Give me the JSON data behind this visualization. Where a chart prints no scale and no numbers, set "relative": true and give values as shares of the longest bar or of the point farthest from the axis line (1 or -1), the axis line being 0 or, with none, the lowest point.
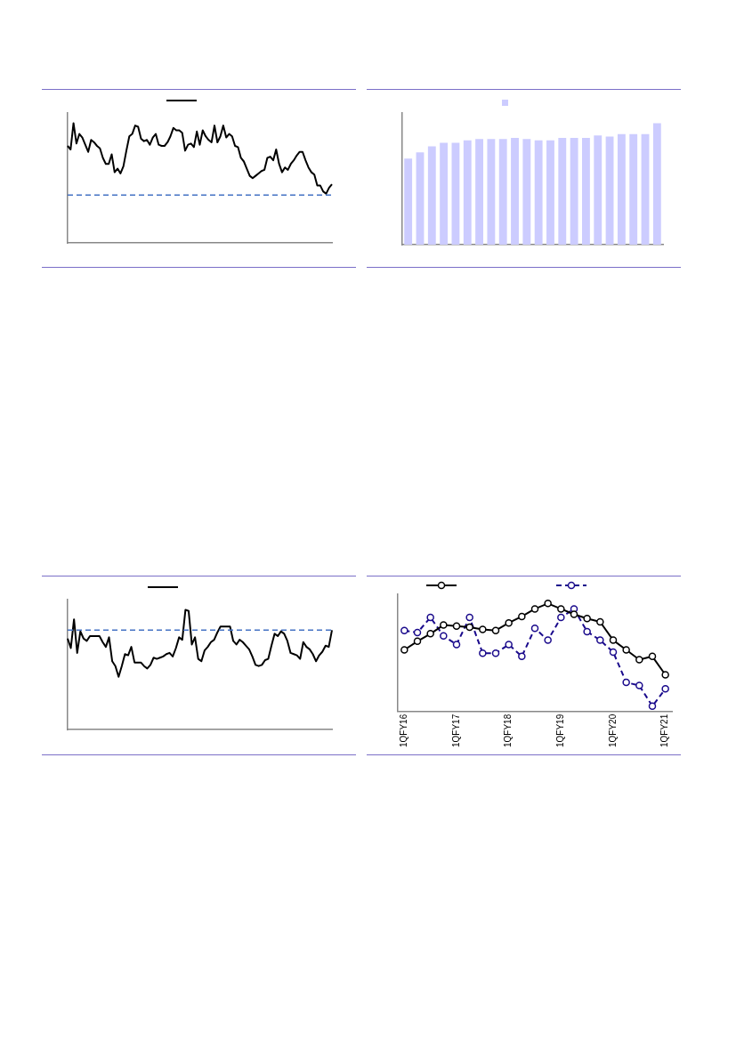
{
  "chart_data": [
    {
      "type": "line",
      "relative": true,
      "marker": "none",
      "categories": [
        null,
        null,
        null,
        null,
        null,
        null,
        null,
        null,
        null,
        null,
        null,
        null,
        null,
        null,
        null,
        null,
        null,
        null,
        null,
        null,
        null,
        null,
        null,
        null,
        null,
        null,
        null,
        null,
        null,
        null,
        null,
        null,
        null,
        null,
        null,
        null,
        null,
        null,
        null,
        null,
        null,
        null,
        null,
        null,
        null,
        null,
        null,
        null,
        null,
        null,
        null,
        null,
        null,
        null,
        null,
        null,
        null,
        null,
        null,
        null,
        null,
        null,
        null,
        null,
        null,
        null,
        null,
        null,
        null,
        null,
        null,
        null,
        null,
        null,
        null,
        null,
        null,
        null,
        null,
        null,
        null,
        null,
        null,
        null,
        null,
        null,
        null,
        null,
        null,
        null,
        null
      ],
      "series": [
        {
          "color": "#000000",
          "line_style": "solid",
          "values": [
            0.81,
            0.78,
            1.0,
            0.83,
            0.91,
            0.88,
            0.82,
            0.76,
            0.86,
            0.84,
            0.81,
            0.79,
            0.71,
            0.66,
            0.66,
            0.74,
            0.59,
            0.62,
            0.58,
            0.64,
            0.77,
            0.89,
            0.91,
            0.98,
            0.97,
            0.87,
            0.85,
            0.86,
            0.82,
            0.88,
            0.91,
            0.82,
            0.81,
            0.81,
            0.84,
            0.89,
            0.96,
            0.94,
            0.94,
            0.92,
            0.77,
            0.82,
            0.83,
            0.8,
            0.93,
            0.82,
            0.94,
            0.89,
            0.86,
            0.84,
            0.98,
            0.84,
            0.89,
            0.98,
            0.88,
            0.91,
            0.89,
            0.81,
            0.8,
            0.71,
            0.68,
            0.62,
            0.56,
            0.54,
            0.56,
            0.58,
            0.6,
            0.61,
            0.71,
            0.72,
            0.69,
            0.78,
            0.66,
            0.59,
            0.63,
            0.61,
            0.66,
            0.69,
            0.73,
            0.76,
            0.76,
            0.69,
            0.63,
            0.59,
            0.57,
            0.48,
            0.48,
            0.43,
            0.41,
            0.46,
            0.49
          ]
        }
      ],
      "ref_lines": [
        {
          "axis": "y",
          "value": 0.4,
          "color": "#4472c4",
          "line_style": "dashed"
        }
      ]
    },
    {
      "type": "bar",
      "relative": true,
      "categories": [
        null,
        null,
        null,
        null,
        null,
        null,
        null,
        null,
        null,
        null,
        null,
        null,
        null,
        null,
        null,
        null,
        null,
        null,
        null,
        null,
        null,
        null
      ],
      "series": [
        {
          "color": "#ccccff",
          "values": [
            0.71,
            0.76,
            0.81,
            0.84,
            0.84,
            0.86,
            0.87,
            0.87,
            0.87,
            0.88,
            0.87,
            0.86,
            0.86,
            0.88,
            0.88,
            0.88,
            0.9,
            0.89,
            0.91,
            0.91,
            0.91,
            1.0
          ]
        }
      ]
    },
    {
      "type": "line",
      "relative": true,
      "marker": "none",
      "categories": [
        null,
        null,
        null,
        null,
        null,
        null,
        null,
        null,
        null,
        null,
        null,
        null,
        null,
        null,
        null,
        null,
        null,
        null,
        null,
        null,
        null,
        null,
        null,
        null,
        null,
        null,
        null,
        null,
        null,
        null,
        null,
        null,
        null,
        null,
        null,
        null,
        null,
        null,
        null,
        null,
        null,
        null,
        null,
        null,
        null,
        null,
        null,
        null,
        null,
        null,
        null,
        null,
        null,
        null,
        null,
        null,
        null,
        null,
        null,
        null,
        null,
        null,
        null,
        null,
        null,
        null,
        null,
        null,
        null,
        null,
        null,
        null,
        null,
        null,
        null,
        null,
        null,
        null,
        null,
        null,
        null,
        null,
        null,
        null
      ],
      "series": [
        {
          "color": "#000000",
          "line_style": "solid",
          "values": [
            0.76,
            0.68,
            0.92,
            0.64,
            0.82,
            0.76,
            0.74,
            0.78,
            0.78,
            0.78,
            0.78,
            0.73,
            0.69,
            0.77,
            0.57,
            0.53,
            0.44,
            0.53,
            0.63,
            0.62,
            0.69,
            0.56,
            0.56,
            0.56,
            0.53,
            0.51,
            0.54,
            0.6,
            0.59,
            0.6,
            0.61,
            0.63,
            0.64,
            0.61,
            0.68,
            0.77,
            0.75,
            1.0,
            0.99,
            0.71,
            0.77,
            0.59,
            0.57,
            0.66,
            0.69,
            0.73,
            0.75,
            0.81,
            0.86,
            0.86,
            0.86,
            0.86,
            0.74,
            0.71,
            0.75,
            0.73,
            0.7,
            0.67,
            0.61,
            0.54,
            0.53,
            0.54,
            0.58,
            0.59,
            0.7,
            0.8,
            0.78,
            0.82,
            0.8,
            0.74,
            0.64,
            0.63,
            0.62,
            0.59,
            0.73,
            0.69,
            0.67,
            0.63,
            0.57,
            0.62,
            0.65,
            0.7,
            0.69,
            0.83
          ]
        }
      ],
      "ref_lines": [
        {
          "axis": "y",
          "value": 0.83,
          "color": "#4472c4",
          "line_style": "dashed"
        }
      ]
    },
    {
      "type": "line",
      "relative": true,
      "marker": "circle",
      "categories": [
        "1QFY16",
        null,
        null,
        null,
        "1QFY17",
        null,
        null,
        null,
        "1QFY18",
        null,
        null,
        null,
        "1QFY19",
        null,
        null,
        null,
        "1QFY20",
        null,
        null,
        null,
        "1QFY21"
      ],
      "series": [
        {
          "color": "#000000",
          "line_style": "solid",
          "values": [
            0.57,
            0.65,
            0.72,
            0.8,
            0.79,
            0.78,
            0.76,
            0.75,
            0.82,
            0.88,
            0.95,
            1.0,
            0.95,
            0.9,
            0.86,
            0.83,
            0.66,
            0.57,
            0.48,
            0.51,
            0.34
          ]
        },
        {
          "color": "#1a0a8c",
          "line_style": "dashed",
          "values": [
            0.75,
            0.73,
            0.87,
            0.7,
            0.62,
            0.87,
            0.54,
            0.54,
            0.62,
            0.51,
            0.77,
            0.66,
            0.87,
            0.95,
            0.74,
            0.66,
            0.55,
            0.27,
            0.24,
            0.05,
            0.21
          ]
        }
      ]
    }
  ]
}
